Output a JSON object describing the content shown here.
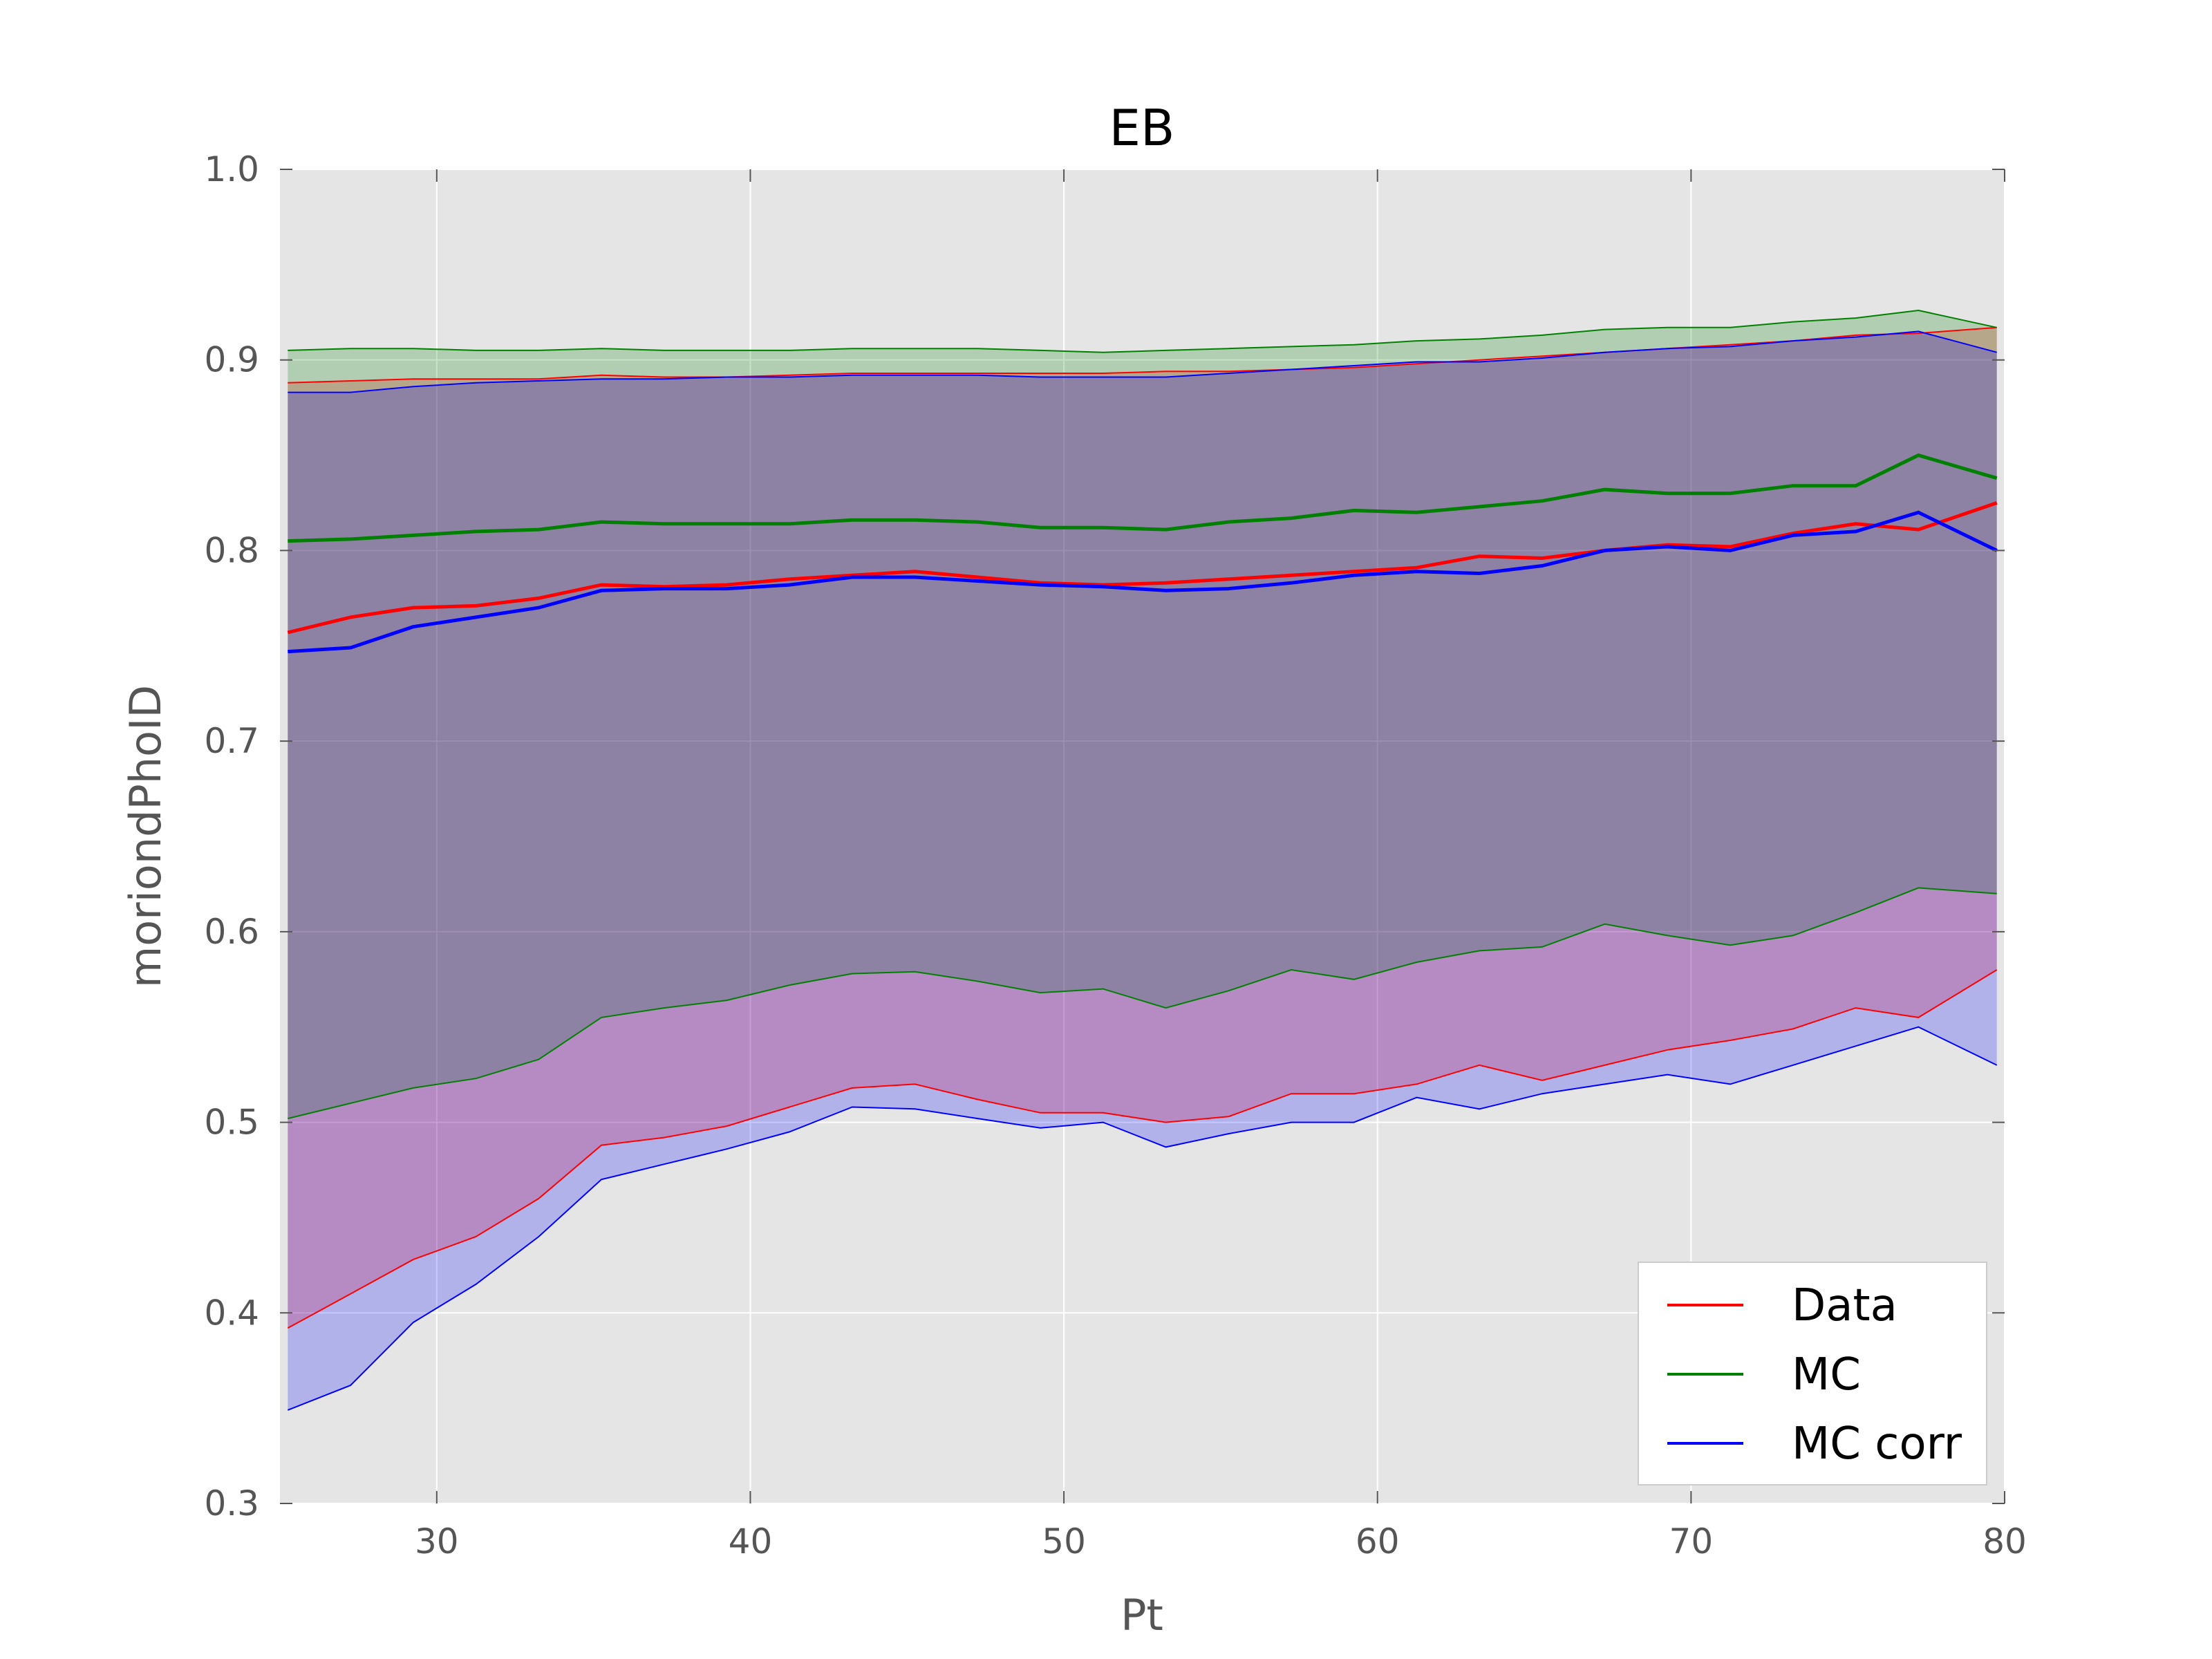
{
  "chart_data": {
    "type": "area",
    "title": "EB",
    "xlabel": "Pt",
    "ylabel": "moriondPhoID",
    "xlim": [
      25,
      80
    ],
    "ylim": [
      0.3,
      1.0
    ],
    "xticks": [
      "30",
      "40",
      "50",
      "60",
      "70",
      "80"
    ],
    "yticks": [
      "0.3",
      "0.4",
      "0.5",
      "0.6",
      "0.7",
      "0.8",
      "0.9",
      "1.0"
    ],
    "grid": true,
    "legend_position": "lower-right",
    "x": [
      25.25,
      27.25,
      29.25,
      31.25,
      33.25,
      35.25,
      37.25,
      39.25,
      41.25,
      43.25,
      45.25,
      47.25,
      49.25,
      51.25,
      53.25,
      55.25,
      57.25,
      59.25,
      61.25,
      63.25,
      65.25,
      67.25,
      69.25,
      71.25,
      73.25,
      75.25,
      77.25,
      79.75
    ],
    "series": [
      {
        "name": "Data",
        "color": "#ff0000",
        "median": [
          0.757,
          0.765,
          0.77,
          0.771,
          0.775,
          0.782,
          0.781,
          0.782,
          0.785,
          0.787,
          0.789,
          0.786,
          0.783,
          0.782,
          0.783,
          0.785,
          0.787,
          0.789,
          0.791,
          0.797,
          0.796,
          0.8,
          0.803,
          0.802,
          0.809,
          0.814,
          0.811,
          0.825
        ],
        "upper": [
          0.888,
          0.889,
          0.89,
          0.89,
          0.89,
          0.892,
          0.891,
          0.891,
          0.892,
          0.893,
          0.893,
          0.893,
          0.893,
          0.893,
          0.894,
          0.894,
          0.895,
          0.896,
          0.898,
          0.9,
          0.902,
          0.904,
          0.906,
          0.908,
          0.91,
          0.913,
          0.914,
          0.917
        ],
        "lower": [
          0.392,
          0.41,
          0.428,
          0.44,
          0.46,
          0.488,
          0.492,
          0.498,
          0.508,
          0.518,
          0.52,
          0.512,
          0.505,
          0.505,
          0.5,
          0.503,
          0.515,
          0.515,
          0.52,
          0.53,
          0.522,
          0.53,
          0.538,
          0.543,
          0.549,
          0.56,
          0.555,
          0.58
        ]
      },
      {
        "name": "MC",
        "color": "#008000",
        "median": [
          0.805,
          0.806,
          0.808,
          0.81,
          0.811,
          0.815,
          0.814,
          0.814,
          0.814,
          0.816,
          0.816,
          0.815,
          0.812,
          0.812,
          0.811,
          0.815,
          0.817,
          0.821,
          0.82,
          0.823,
          0.826,
          0.832,
          0.83,
          0.83,
          0.834,
          0.834,
          0.85,
          0.838
        ],
        "upper": [
          0.905,
          0.906,
          0.906,
          0.905,
          0.905,
          0.906,
          0.905,
          0.905,
          0.905,
          0.906,
          0.906,
          0.906,
          0.905,
          0.904,
          0.905,
          0.906,
          0.907,
          0.908,
          0.91,
          0.911,
          0.913,
          0.916,
          0.917,
          0.917,
          0.92,
          0.922,
          0.926,
          0.917
        ],
        "lower": [
          0.502,
          0.51,
          0.518,
          0.523,
          0.533,
          0.555,
          0.56,
          0.564,
          0.572,
          0.578,
          0.579,
          0.574,
          0.568,
          0.57,
          0.56,
          0.569,
          0.58,
          0.575,
          0.584,
          0.59,
          0.592,
          0.604,
          0.598,
          0.593,
          0.598,
          0.61,
          0.623,
          0.62
        ]
      },
      {
        "name": "MC corr",
        "color": "#0000ff",
        "median": [
          0.747,
          0.749,
          0.76,
          0.765,
          0.77,
          0.779,
          0.78,
          0.78,
          0.782,
          0.786,
          0.786,
          0.784,
          0.782,
          0.781,
          0.779,
          0.78,
          0.783,
          0.787,
          0.789,
          0.788,
          0.792,
          0.8,
          0.802,
          0.8,
          0.808,
          0.81,
          0.82,
          0.8
        ],
        "upper": [
          0.883,
          0.883,
          0.886,
          0.888,
          0.889,
          0.89,
          0.89,
          0.891,
          0.891,
          0.892,
          0.892,
          0.892,
          0.891,
          0.891,
          0.891,
          0.893,
          0.895,
          0.897,
          0.899,
          0.899,
          0.901,
          0.904,
          0.906,
          0.907,
          0.91,
          0.912,
          0.915,
          0.904
        ],
        "lower": [
          0.349,
          0.362,
          0.395,
          0.415,
          0.44,
          0.47,
          0.478,
          0.486,
          0.495,
          0.508,
          0.507,
          0.502,
          0.497,
          0.5,
          0.487,
          0.494,
          0.5,
          0.5,
          0.513,
          0.507,
          0.515,
          0.52,
          0.525,
          0.52,
          0.53,
          0.54,
          0.55,
          0.53
        ]
      }
    ]
  }
}
